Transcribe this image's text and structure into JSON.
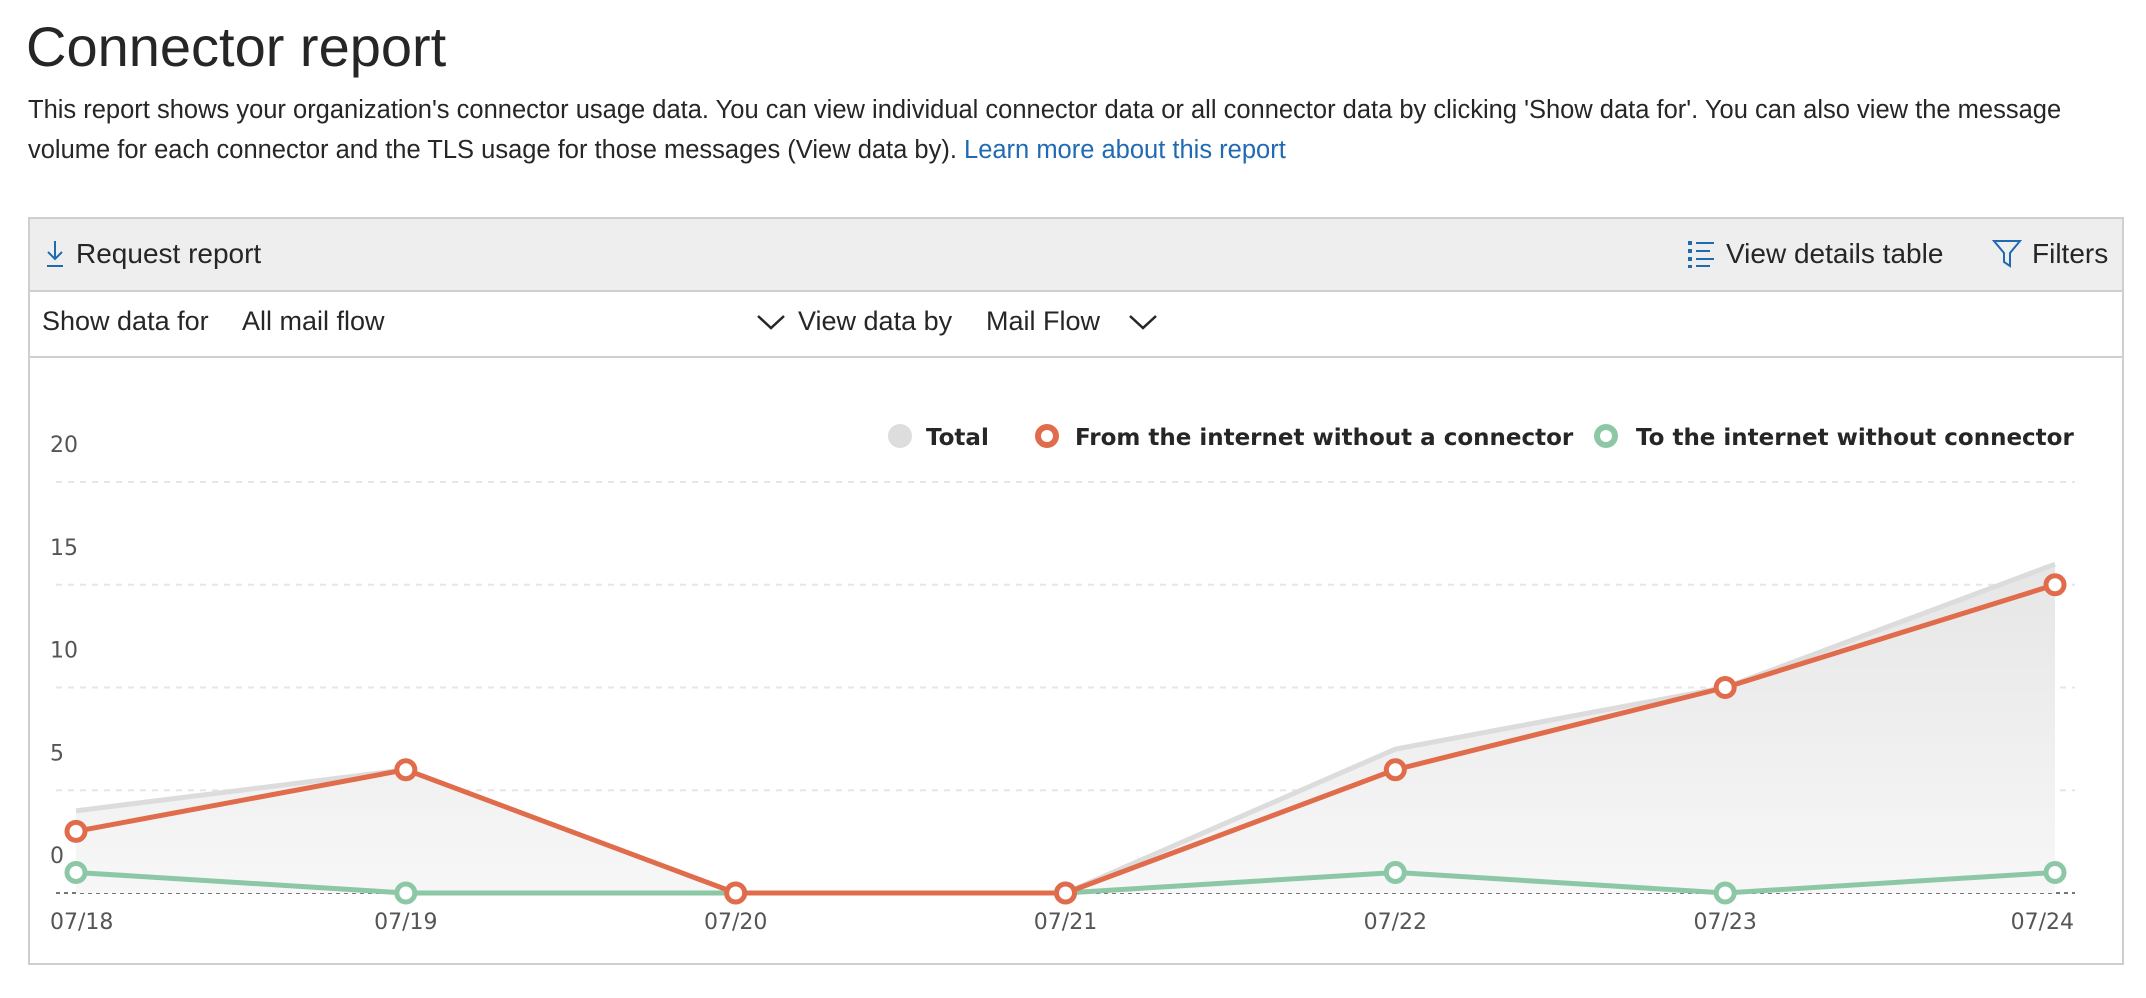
{
  "page": {
    "title": "Connector report",
    "description": "This report shows your organization's connector usage data. You can view individual connector data or all connector data by clicking 'Show data for'. You can also view the message volume for each connector and the TLS usage for those messages (View data by).",
    "learn_more_link": "Learn more about this report"
  },
  "toolbar": {
    "request_report": "Request report",
    "view_details_table": "View details table",
    "filters": "Filters"
  },
  "filters": {
    "show_data_for_label": "Show data for",
    "show_data_for_value": "All mail flow",
    "view_data_by_label": "View data by",
    "view_data_by_value": "Mail Flow"
  },
  "colors": {
    "accent": "#1f6ab3",
    "total": "#dddddd",
    "from_internet": "#e06c4c",
    "to_internet": "#8cc7a6"
  },
  "chart_data": {
    "type": "line",
    "categories": [
      "07/18",
      "07/19",
      "07/20",
      "07/21",
      "07/22",
      "07/23",
      "07/24"
    ],
    "ylim": [
      0,
      20
    ],
    "yticks": [
      "0",
      "5",
      "10",
      "15",
      "20"
    ],
    "grid": true,
    "legend_position": "top-right",
    "series": [
      {
        "name": "Total",
        "style": "area",
        "color": "#dddddd",
        "values": [
          4,
          6,
          0,
          0,
          7,
          10,
          16
        ]
      },
      {
        "name": "From the internet without a connector",
        "style": "line",
        "color": "#e06c4c",
        "values": [
          3,
          6,
          0,
          0,
          6,
          10,
          15
        ]
      },
      {
        "name": "To the internet without connector",
        "style": "line",
        "color": "#8cc7a6",
        "values": [
          1,
          0,
          0,
          0,
          1,
          0,
          1
        ]
      }
    ]
  }
}
